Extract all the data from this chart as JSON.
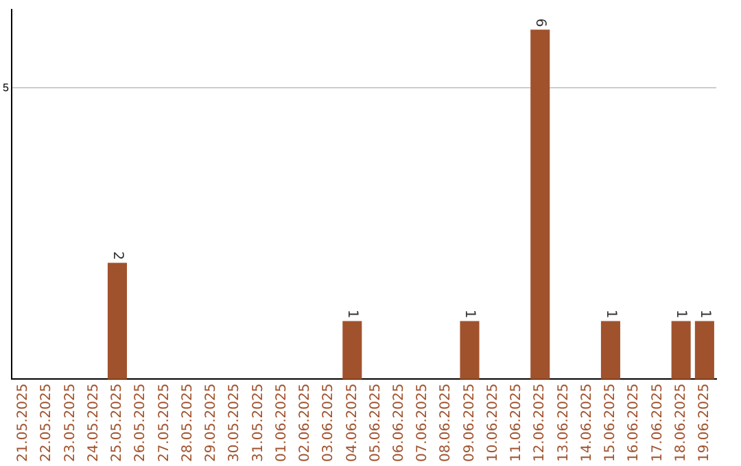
{
  "chart_data": {
    "type": "bar",
    "categories": [
      "21.05.2025",
      "22.05.2025",
      "23.05.2025",
      "24.05.2025",
      "25.05.2025",
      "26.05.2025",
      "27.05.2025",
      "28.05.2025",
      "29.05.2025",
      "30.05.2025",
      "31.05.2025",
      "01.06.2025",
      "02.06.2025",
      "03.06.2025",
      "04.06.2025",
      "05.06.2025",
      "06.06.2025",
      "07.06.2025",
      "08.06.2025",
      "09.06.2025",
      "10.06.2025",
      "11.06.2025",
      "12.06.2025",
      "13.06.2025",
      "14.06.2025",
      "15.06.2025",
      "16.06.2025",
      "17.06.2025",
      "18.06.2025",
      "19.06.2025"
    ],
    "values": [
      0,
      0,
      0,
      0,
      2,
      0,
      0,
      0,
      0,
      0,
      0,
      0,
      0,
      0,
      1,
      0,
      0,
      0,
      0,
      1,
      0,
      0,
      6,
      0,
      0,
      1,
      0,
      0,
      1,
      1
    ],
    "value_labels": [
      null,
      null,
      null,
      null,
      "2",
      null,
      null,
      null,
      null,
      null,
      null,
      null,
      null,
      null,
      "1",
      null,
      null,
      null,
      null,
      "1",
      null,
      null,
      "6",
      null,
      null,
      "1",
      null,
      null,
      "1",
      "1"
    ],
    "color": "#a0522d",
    "ylim": [
      0,
      6.35
    ],
    "yticks": [
      5
    ],
    "grid": "y",
    "legend": false
  }
}
